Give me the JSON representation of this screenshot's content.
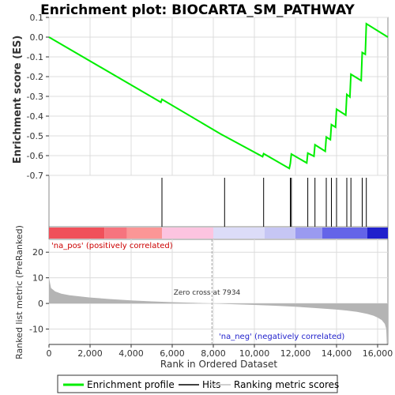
{
  "chart_data": {
    "type": "line",
    "title": "Enrichment plot: BIOCARTA_SM_PATHWAY",
    "xlabel": "Rank in Ordered Dataset",
    "ylabel_top": "Enrichment score (ES)",
    "ylabel_bottom": "Ranked list metric (PreRanked)",
    "x_max": 16500,
    "es_ylim": [
      -0.7,
      0.1
    ],
    "es_yticks": [
      "0.1",
      "0.0",
      "-0.1",
      "-0.2",
      "-0.3",
      "-0.4",
      "-0.5",
      "-0.6",
      "-0.7"
    ],
    "metric_ylim": [
      -16,
      25
    ],
    "metric_yticks": [
      "20",
      "10",
      "0",
      "-10"
    ],
    "xticks": [
      "0",
      "2,000",
      "4,000",
      "6,000",
      "8,000",
      "10,000",
      "12,000",
      "14,000",
      "16,000"
    ],
    "hits": [
      5500,
      8550,
      10450,
      11750,
      11800,
      12600,
      12950,
      13500,
      13750,
      14000,
      14500,
      14700,
      15250,
      15450
    ],
    "es_profile": {
      "x": [
        0,
        5450,
        5500,
        8350,
        10400,
        10450,
        11700,
        11750,
        11800,
        12550,
        12600,
        12900,
        12950,
        13450,
        13500,
        13700,
        13750,
        13950,
        14000,
        14450,
        14500,
        14650,
        14700,
        15200,
        15250,
        15400,
        15450,
        16500
      ],
      "y": [
        0.0,
        -0.33,
        -0.315,
        -0.49,
        -0.605,
        -0.59,
        -0.665,
        -0.64,
        -0.592,
        -0.637,
        -0.587,
        -0.603,
        -0.545,
        -0.578,
        -0.506,
        -0.519,
        -0.443,
        -0.456,
        -0.365,
        -0.395,
        -0.29,
        -0.303,
        -0.188,
        -0.22,
        -0.078,
        -0.087,
        0.068,
        0.0
      ]
    },
    "metric": {
      "x": [
        0,
        100,
        300,
        600,
        1000,
        2000,
        3000,
        4000,
        5000,
        6000,
        7000,
        7934,
        9000,
        10000,
        11000,
        12000,
        13000,
        14000,
        14500,
        15000,
        15500,
        15800,
        16000,
        16200,
        16350,
        16420,
        16450,
        16500
      ],
      "y": [
        10.0,
        6.0,
        4.7,
        3.8,
        3.2,
        2.3,
        1.7,
        1.2,
        0.8,
        0.5,
        0.25,
        0.0,
        -0.3,
        -0.6,
        -0.9,
        -1.3,
        -1.8,
        -2.4,
        -2.8,
        -3.3,
        -4.1,
        -4.8,
        -5.5,
        -6.5,
        -8.0,
        -10.0,
        -16.0,
        -16.0
      ]
    },
    "heatmap_segments": [
      {
        "x0": 0,
        "x1": 2700,
        "color": "#f0505a"
      },
      {
        "x0": 2700,
        "x1": 3800,
        "color": "#f6747e"
      },
      {
        "x0": 3800,
        "x1": 5500,
        "color": "#fb9696"
      },
      {
        "x0": 5500,
        "x1": 8000,
        "color": "#fcc4e0"
      },
      {
        "x0": 8000,
        "x1": 10500,
        "color": "#dcdcf8"
      },
      {
        "x0": 10500,
        "x1": 12000,
        "color": "#c6c6f4"
      },
      {
        "x0": 12000,
        "x1": 13300,
        "color": "#9a9af0"
      },
      {
        "x0": 13300,
        "x1": 15500,
        "color": "#6464e8"
      },
      {
        "x0": 15500,
        "x1": 16500,
        "color": "#2020cc"
      }
    ],
    "na_pos_label": "'na_pos' (positively correlated)",
    "na_neg_label": "'na_neg' (negatively correlated)",
    "zero_cross_label": "Zero cross at 7934",
    "zero_cross_x": 7934,
    "grid": true,
    "legend_position": "bottom",
    "legend": [
      {
        "label": "Enrichment profile",
        "color": "#00ee00"
      },
      {
        "label": "Hits",
        "color": "#000000"
      },
      {
        "label": "Ranking metric scores",
        "color": "#c0c0c0"
      }
    ],
    "colors": {
      "es_line": "#00ee00",
      "metric_fill": "#b4b4b4",
      "grid": "#dcdcdc",
      "pos_text": "#cc0000",
      "neg_text": "#2222cc"
    }
  }
}
